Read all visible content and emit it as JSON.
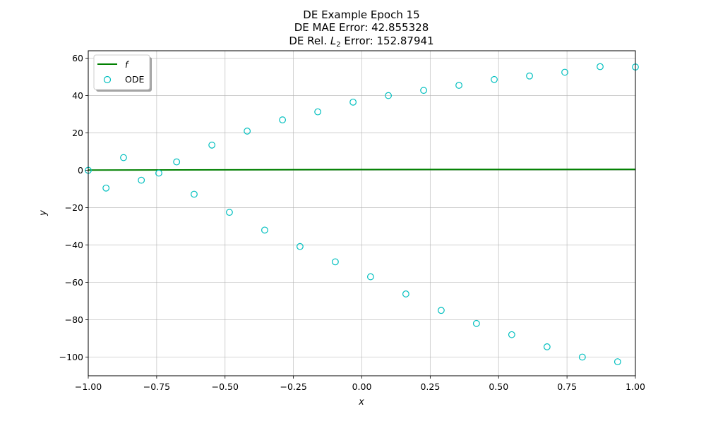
{
  "chart_data": {
    "type": "scatter",
    "title_line1": "DE Example Epoch 15",
    "title_line2": "DE MAE Error: 42.855328",
    "title_line3_prefix": "DE Rel. ",
    "title_line3_symbol": "L",
    "title_line3_subscript": "2",
    "title_line3_suffix": " Error: 152.87941",
    "xlabel": "x",
    "ylabel": "y",
    "xlim": [
      -1.0,
      1.0
    ],
    "ylim": [
      -110,
      64
    ],
    "xticks": [
      -1.0,
      -0.75,
      -0.5,
      -0.25,
      0.0,
      0.25,
      0.5,
      0.75,
      1.0
    ],
    "xtick_labels": [
      "−1.00",
      "−0.75",
      "−0.50",
      "−0.25",
      "0.00",
      "0.25",
      "0.50",
      "0.75",
      "1.00"
    ],
    "yticks": [
      -100,
      -80,
      -60,
      -40,
      -20,
      0,
      20,
      40,
      60
    ],
    "ytick_labels": [
      "−100",
      "−80",
      "−60",
      "−40",
      "−20",
      "0",
      "20",
      "40",
      "60"
    ],
    "grid": true,
    "legend_position": "top-left",
    "series": [
      {
        "name": "f",
        "kind": "line",
        "color": "#008000",
        "x": [
          -1.0,
          0.0,
          1.0
        ],
        "y": [
          0.1,
          0.4,
          0.5
        ]
      },
      {
        "name": "ODE",
        "kind": "scatter",
        "color": "#00bfbf",
        "x": [
          -1.0,
          -0.935,
          -0.871,
          -0.806,
          -0.742,
          -0.677,
          -0.613,
          -0.548,
          -0.484,
          -0.419,
          -0.355,
          -0.29,
          -0.226,
          -0.161,
          -0.097,
          -0.032,
          0.032,
          0.097,
          0.161,
          0.226,
          0.29,
          0.355,
          0.419,
          0.484,
          0.548,
          0.613,
          0.677,
          0.742,
          0.806,
          0.871,
          0.935,
          1.0
        ],
        "y": [
          0.0,
          -9.5,
          6.8,
          -5.3,
          -1.5,
          4.5,
          -12.8,
          13.5,
          -22.5,
          21.0,
          -32.0,
          27.0,
          -40.8,
          31.3,
          -49.0,
          36.5,
          -57.0,
          40.0,
          -66.2,
          42.8,
          -75.0,
          45.5,
          -82.0,
          48.6,
          -88.0,
          50.5,
          -94.5,
          52.5,
          -100.0,
          55.5,
          -102.5,
          55.3
        ]
      }
    ]
  }
}
